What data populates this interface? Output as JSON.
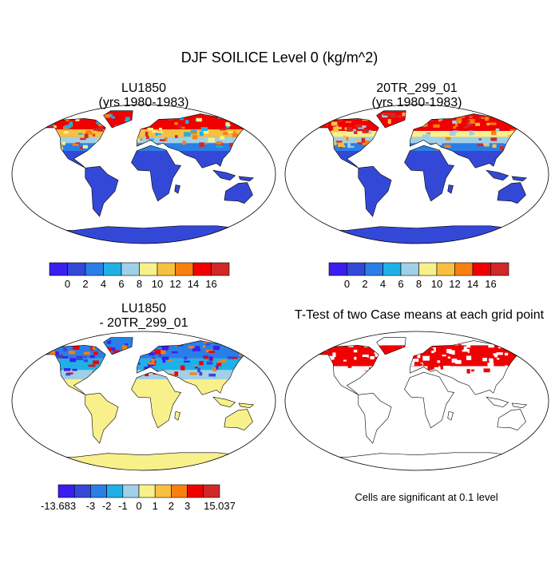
{
  "title": "DJF SOILICE Level 0 (kg/m^2)",
  "panels": [
    {
      "title": [
        "LU1850",
        "(yrs 1980-1983)"
      ],
      "colorbar": {
        "colors": [
          "#3a1ef0",
          "#3448d8",
          "#2a7ee8",
          "#20b0e8",
          "#a0d0e8",
          "#f8f08a",
          "#f8c040",
          "#f88010",
          "#f00000",
          "#d02828"
        ],
        "labels": [
          0,
          2,
          4,
          6,
          8,
          10,
          12,
          14,
          16
        ]
      }
    },
    {
      "title": [
        "20TR_299_01",
        "(yrs 1980-1983)"
      ],
      "colorbar": {
        "colors": [
          "#3a1ef0",
          "#3448d8",
          "#2a7ee8",
          "#20b0e8",
          "#a0d0e8",
          "#f8f08a",
          "#f8c040",
          "#f88010",
          "#f00000",
          "#d02828"
        ],
        "labels": [
          0,
          2,
          4,
          6,
          8,
          10,
          12,
          14,
          16
        ]
      }
    },
    {
      "title": [
        "LU1850",
        "- 20TR_299_01"
      ],
      "colorbar": {
        "colors": [
          "#3a1ef0",
          "#3448d8",
          "#2a7ee8",
          "#20b0e8",
          "#a0d0e8",
          "#f8f08a",
          "#f8c040",
          "#f88010",
          "#f00000",
          "#d02828"
        ],
        "labels": [
          -13.683,
          -3,
          -2,
          -1,
          0,
          1,
          2,
          3,
          15.037
        ]
      }
    },
    {
      "title": [
        "T-Test of two Case means at each grid point"
      ],
      "note": "Cells are significant at 0.1 level"
    }
  ]
}
